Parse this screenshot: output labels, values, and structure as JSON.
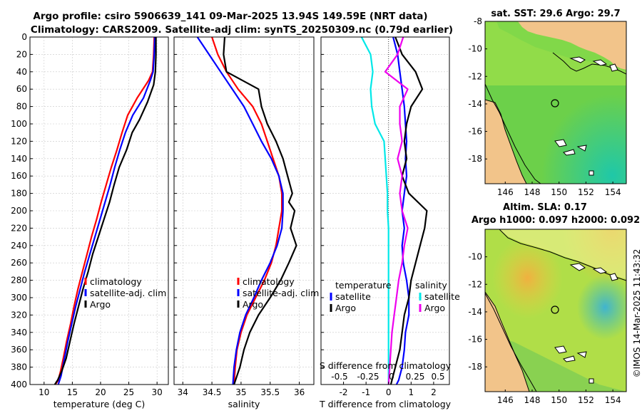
{
  "header": {
    "title_line1": "Argo profile: csiro 5906639_141 09-Mar-2025 13.94S 149.59E (NRT data)",
    "title_line2": "Climatology: CARS2009. Satellite-adj clim: synTS_20250309.nc (0.79d earlier)"
  },
  "sidebar": {
    "stamp": "©IMOS 14-Mar-2025 11:43:32"
  },
  "chart_data": [
    {
      "id": "temperature",
      "type": "line",
      "xlabel": "temperature (deg C)",
      "ylabel": "",
      "xlim": [
        7.5,
        32
      ],
      "ylim": [
        400,
        0
      ],
      "xticks": [
        10,
        15,
        20,
        25,
        30
      ],
      "yticks": [
        0,
        20,
        40,
        60,
        80,
        100,
        120,
        140,
        160,
        180,
        200,
        220,
        240,
        260,
        280,
        300,
        320,
        340,
        360,
        380,
        400
      ],
      "legend": [
        "climatology",
        "satellite-adj. clim",
        "Argo"
      ],
      "series": [
        {
          "name": "climatology",
          "color": "#ff0000",
          "x": [
            29.5,
            29.4,
            29.2,
            28.5,
            26.5,
            24.8,
            23.8,
            22.9,
            21.9,
            21.0,
            20.1,
            19.3,
            18.4,
            17.6,
            16.8,
            16.0,
            15.3,
            14.7,
            14.0,
            13.4,
            12.9,
            12.5,
            12.0
          ],
          "y": [
            0,
            20,
            40,
            50,
            70,
            90,
            110,
            130,
            150,
            170,
            190,
            210,
            230,
            250,
            270,
            290,
            310,
            330,
            350,
            370,
            385,
            395,
            400
          ]
        },
        {
          "name": "satellite-adj. clim",
          "color": "#0000ff",
          "x": [
            29.6,
            29.5,
            29.3,
            28.8,
            27.6,
            25.7,
            24.4,
            23.4,
            22.5,
            21.7,
            20.8,
            19.9,
            19.0,
            18.1,
            17.2,
            16.4,
            15.6,
            14.9,
            14.2,
            13.6,
            13.0,
            12.5
          ],
          "y": [
            0,
            20,
            40,
            50,
            70,
            90,
            110,
            130,
            150,
            170,
            190,
            210,
            230,
            250,
            270,
            290,
            310,
            330,
            350,
            370,
            390,
            400
          ]
        },
        {
          "name": "Argo",
          "color": "#000000",
          "x": [
            29.8,
            29.8,
            29.7,
            29.4,
            28.3,
            26.9,
            25.6,
            24.6,
            23.3,
            22.4,
            21.6,
            20.6,
            19.6,
            18.6,
            17.8,
            16.9,
            16.1,
            15.3,
            14.6,
            13.9,
            13.1,
            12.4,
            11.9
          ],
          "y": [
            0,
            20,
            40,
            55,
            75,
            95,
            110,
            130,
            150,
            170,
            190,
            210,
            230,
            250,
            270,
            290,
            310,
            330,
            350,
            370,
            385,
            395,
            400
          ]
        }
      ]
    },
    {
      "id": "salinity",
      "type": "line",
      "xlabel": "salinity",
      "ylabel": "",
      "xlim": [
        33.85,
        36.25
      ],
      "ylim": [
        400,
        0
      ],
      "xticks": [
        34,
        34.5,
        35,
        35.5,
        36
      ],
      "legend": [
        "climatology",
        "satellite-adj. clim",
        "Argo"
      ],
      "series": [
        {
          "name": "climatology",
          "color": "#ff0000",
          "x": [
            34.5,
            34.6,
            34.75,
            34.95,
            35.2,
            35.35,
            35.45,
            35.55,
            35.65,
            35.7,
            35.7,
            35.65,
            35.6,
            35.52,
            35.4,
            35.25,
            35.1,
            35.0,
            34.93,
            34.9,
            34.88
          ],
          "y": [
            0,
            20,
            40,
            60,
            80,
            100,
            120,
            140,
            160,
            180,
            200,
            220,
            240,
            260,
            280,
            300,
            320,
            340,
            360,
            380,
            400
          ]
        },
        {
          "name": "satellite-adj. clim",
          "color": "#0000ff",
          "x": [
            34.25,
            34.45,
            34.65,
            34.85,
            35.05,
            35.2,
            35.35,
            35.52,
            35.65,
            35.72,
            35.72,
            35.7,
            35.62,
            35.5,
            35.35,
            35.22,
            35.08,
            34.98,
            34.92,
            34.88,
            34.86
          ],
          "y": [
            0,
            20,
            40,
            60,
            80,
            100,
            120,
            140,
            160,
            180,
            200,
            220,
            240,
            260,
            280,
            300,
            320,
            340,
            360,
            380,
            400
          ]
        },
        {
          "name": "Argo",
          "color": "#000000",
          "x": [
            34.72,
            34.7,
            34.75,
            35.3,
            35.35,
            35.45,
            35.6,
            35.72,
            35.8,
            35.88,
            35.82,
            35.92,
            35.85,
            35.95,
            35.82,
            35.68,
            35.5,
            35.3,
            35.15,
            35.05,
            34.98,
            34.93,
            34.88
          ],
          "y": [
            0,
            20,
            40,
            60,
            80,
            100,
            120,
            140,
            160,
            180,
            190,
            200,
            220,
            240,
            260,
            280,
            300,
            320,
            340,
            360,
            380,
            390,
            400
          ]
        }
      ]
    },
    {
      "id": "difference",
      "type": "line",
      "xlabel": "T difference from climatology",
      "xlabel_top": "S difference from climatology",
      "ylabel": "",
      "xlim": [
        -3,
        2.7
      ],
      "ylim": [
        400,
        0
      ],
      "xticks": [
        -2,
        -1,
        0,
        1,
        2
      ],
      "xtick_labels_top": [
        "-0.5",
        "-0.25",
        "0",
        "0.25",
        "0.5"
      ],
      "legend_headers": [
        "temperature",
        "salinity"
      ],
      "legend": [
        "satellite",
        "Argo",
        "satellite",
        "Argo"
      ],
      "series": [
        {
          "name": "temperature satellite",
          "color": "#0000ff",
          "x": [
            0.2,
            0.4,
            0.5,
            0.6,
            0.7,
            0.75,
            0.8,
            0.75,
            0.8,
            0.7,
            0.6,
            0.7,
            0.6,
            0.65,
            0.8,
            0.9,
            0.9,
            0.75,
            0.7,
            0.6,
            0.45,
            0.35
          ],
          "y": [
            0,
            20,
            40,
            60,
            80,
            100,
            120,
            140,
            160,
            180,
            200,
            220,
            240,
            260,
            280,
            300,
            320,
            340,
            360,
            380,
            395,
            400
          ]
        },
        {
          "name": "temperature Argo",
          "color": "#000000",
          "x": [
            0.3,
            0.6,
            1.2,
            1.5,
            1.0,
            0.8,
            0.7,
            0.8,
            0.6,
            0.9,
            1.7,
            1.6,
            1.4,
            1.2,
            1.0,
            0.9,
            0.7,
            0.6,
            0.5,
            0.3,
            0.1
          ],
          "y": [
            0,
            20,
            40,
            60,
            80,
            100,
            120,
            140,
            160,
            180,
            200,
            220,
            240,
            260,
            280,
            300,
            320,
            340,
            360,
            380,
            400
          ]
        },
        {
          "name": "salinity satellite",
          "color": "#00e8e8",
          "x": [
            -1.2,
            -0.8,
            -0.7,
            -0.8,
            -0.75,
            -0.6,
            -0.2,
            -0.15,
            -0.1,
            -0.05,
            -0.05,
            0.0,
            0.0,
            0.0,
            0.0,
            0.0,
            0.0,
            0.0,
            0.0,
            0.0,
            0.0
          ],
          "y": [
            0,
            20,
            40,
            60,
            80,
            100,
            120,
            140,
            160,
            180,
            200,
            220,
            240,
            260,
            280,
            300,
            320,
            340,
            360,
            380,
            400
          ]
        },
        {
          "name": "salinity Argo",
          "color": "#ee00ee",
          "x": [
            0.65,
            0.4,
            -0.15,
            0.85,
            0.5,
            0.5,
            0.6,
            0.4,
            0.6,
            0.5,
            0.6,
            0.85,
            0.7,
            0.6,
            0.45,
            0.35,
            0.25,
            0.15,
            0.1,
            0.05,
            0.0
          ],
          "y": [
            0,
            20,
            40,
            60,
            80,
            100,
            120,
            140,
            160,
            180,
            200,
            220,
            240,
            260,
            280,
            300,
            320,
            340,
            360,
            380,
            400
          ]
        }
      ]
    },
    {
      "id": "sst_map",
      "type": "heatmap",
      "title": "sat. SST: 29.6 Argo: 29.7",
      "xlim": [
        144.5,
        155
      ],
      "ylim": [
        -19.8,
        -8
      ],
      "xticks": [
        146,
        148,
        150,
        152,
        154
      ],
      "yticks": [
        -8,
        -10,
        -12,
        -14,
        -16,
        -18
      ],
      "marker": {
        "lon": 149.59,
        "lat": -13.94
      }
    },
    {
      "id": "sla_map",
      "type": "heatmap",
      "title": "Altim. SLA: 0.17",
      "subtitle": "Argo h1000: 0.097 h2000: 0.092",
      "xlim": [
        144.5,
        155
      ],
      "ylim": [
        -19.8,
        -8
      ],
      "xticks": [
        146,
        148,
        150,
        152,
        154
      ],
      "yticks": [
        -10,
        -12,
        -14,
        -16,
        -18
      ],
      "marker": {
        "lon": 149.59,
        "lat": -13.94
      }
    }
  ]
}
